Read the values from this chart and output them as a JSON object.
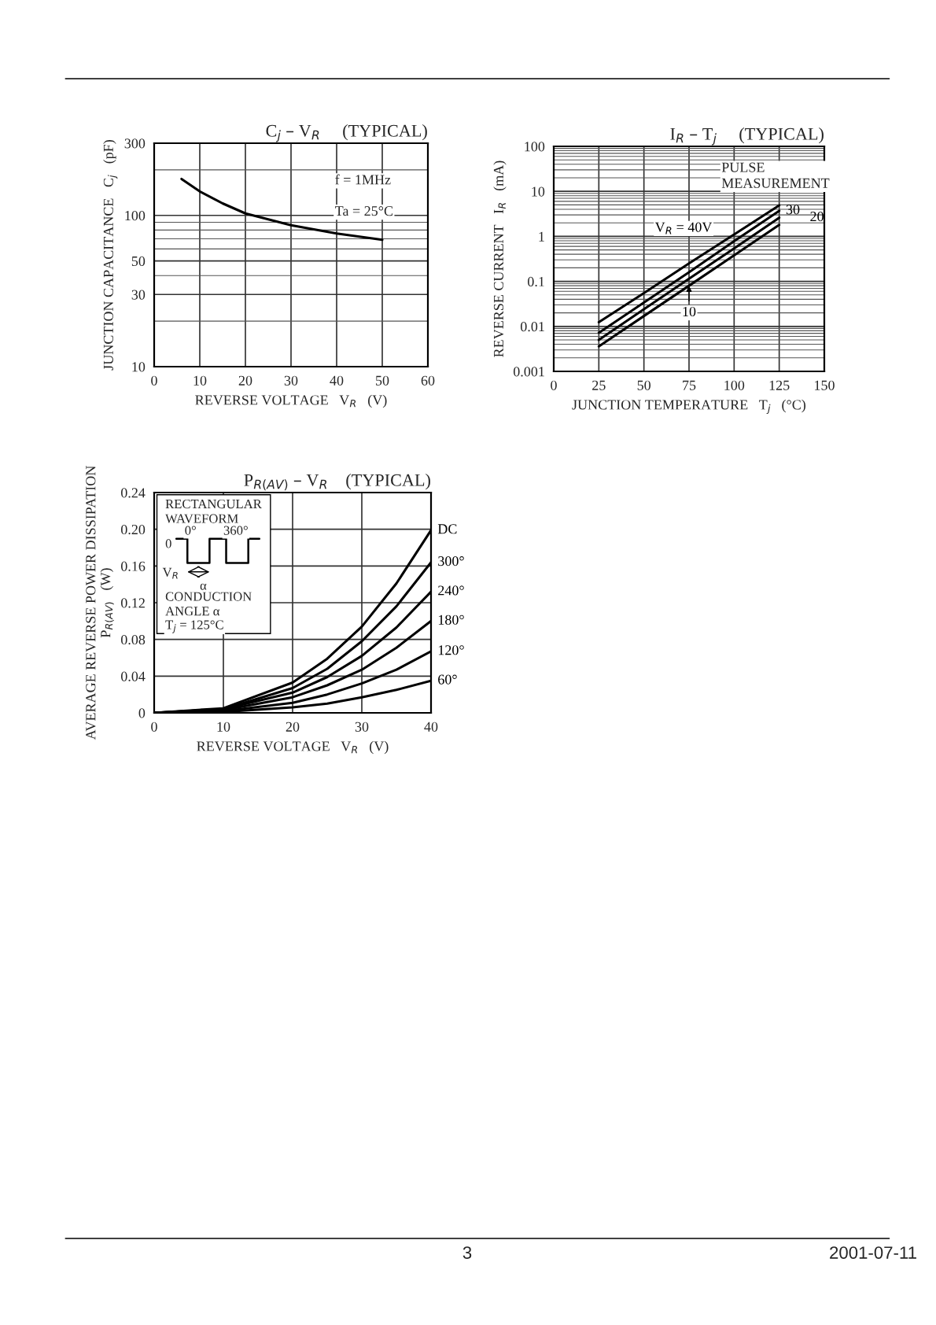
{
  "chart_data": [
    {
      "type": "line",
      "title": "C$_{j}$ – V$_{R}$     (TYPICAL)",
      "xlabel": "REVERSE VOLTAGE   V$_{R}$   (V)",
      "ylabel": "JUNCTION CAPACITANCE   C$_{j}$   (pF)",
      "log": "y",
      "grid": true,
      "xlim": [
        0,
        60
      ],
      "xticks": [
        0,
        10,
        20,
        30,
        40,
        50,
        60
      ],
      "ylim": [
        10,
        300
      ],
      "yticks": [
        10,
        30,
        50,
        100,
        300
      ],
      "annotations": [
        "f = 1MHz",
        "Ta = 25°C"
      ],
      "series": [
        {
          "color": "#000000",
          "x": [
            6,
            10,
            15,
            20,
            30,
            40,
            50
          ],
          "values": [
            174,
            144,
            120,
            103,
            86,
            76,
            69
          ]
        }
      ]
    },
    {
      "type": "line",
      "title": "I$_{R}$ – T$_{j}$     (TYPICAL)",
      "xlabel": "JUNCTION TEMPERATURE   T$_{j}$   (°C)",
      "ylabel": "REVERSE CURRENT   I$_{R}$   (mA)",
      "log": "y",
      "grid": true,
      "xlim": [
        0,
        150
      ],
      "xticks": [
        0,
        25,
        50,
        75,
        100,
        125,
        150
      ],
      "ylim": [
        0.001,
        100
      ],
      "yticks": [
        0.001,
        0.01,
        0.1,
        1,
        10,
        100
      ],
      "annotations": [
        "PULSE\nMEASUREMENT"
      ],
      "series": [
        {
          "name": "V$_{R}$ = 40V",
          "color": "#000000",
          "x": [
            25,
            50,
            75,
            100,
            125
          ],
          "values": [
            0.0124,
            0.055,
            0.25,
            1.1,
            4.9
          ]
        },
        {
          "name": "30",
          "color": "#000000",
          "x": [
            25,
            50,
            75,
            100,
            125
          ],
          "values": [
            0.0072,
            0.034,
            0.16,
            0.78,
            3.7
          ]
        },
        {
          "name": "20",
          "color": "#000000",
          "x": [
            25,
            50,
            75,
            100,
            125
          ],
          "values": [
            0.005,
            0.024,
            0.114,
            0.54,
            2.6
          ]
        },
        {
          "name": "10",
          "color": "#000000",
          "x": [
            25,
            50,
            75,
            100,
            125
          ],
          "values": [
            0.0036,
            0.017,
            0.08,
            0.38,
            1.8
          ]
        }
      ]
    },
    {
      "type": "line",
      "title": "P$_{R(AV)}$ – V$_{R}$    (TYPICAL)",
      "xlabel": "REVERSE VOLTAGE   V$_{R}$   (V)",
      "ylabel": "AVERAGE REVERSE POWER DISSIPATION\nP$_{R(AV)}$   (W)",
      "grid": true,
      "xlim": [
        0,
        40
      ],
      "xticks": [
        0,
        10,
        20,
        30,
        40
      ],
      "ylim": [
        0,
        0.24
      ],
      "yticks": [
        0,
        0.04,
        0.08,
        0.12,
        0.16,
        {
          "value": 0.2,
          "label": "0.20"
        },
        0.24
      ],
      "annotations": [
        "RECTANGULAR\nWAVEFORM",
        "0",
        "0°",
        "360°",
        "V$_{R}$",
        "α",
        "CONDUCTION\nANGLE α",
        "T$_{j}$ = 125°C",
        "3",
        "2001-07-11"
      ],
      "series": [
        {
          "name": "DC",
          "color": "#000000",
          "x": [
            0,
            10,
            20,
            25,
            30,
            35,
            40
          ],
          "values": [
            0,
            0.005,
            0.033,
            0.059,
            0.094,
            0.141,
            0.199
          ]
        },
        {
          "name": "300°",
          "color": "#000000",
          "x": [
            0,
            10,
            20,
            25,
            30,
            35,
            40
          ],
          "values": [
            0,
            0.004,
            0.027,
            0.048,
            0.078,
            0.116,
            0.164
          ]
        },
        {
          "name": "240°",
          "color": "#000000",
          "x": [
            0,
            10,
            20,
            25,
            30,
            35,
            40
          ],
          "values": [
            0,
            0.004,
            0.022,
            0.039,
            0.062,
            0.093,
            0.132
          ]
        },
        {
          "name": "180°",
          "color": "#000000",
          "x": [
            0,
            10,
            20,
            25,
            30,
            35,
            40
          ],
          "values": [
            0,
            0.003,
            0.017,
            0.03,
            0.047,
            0.071,
            0.1
          ]
        },
        {
          "name": "120°",
          "color": "#000000",
          "x": [
            0,
            10,
            20,
            25,
            30,
            35,
            40
          ],
          "values": [
            0,
            0.002,
            0.011,
            0.02,
            0.032,
            0.047,
            0.067
          ]
        },
        {
          "name": "60°",
          "color": "#000000",
          "x": [
            0,
            10,
            20,
            25,
            30,
            35,
            40
          ],
          "values": [
            0,
            0.001,
            0.006,
            0.01,
            0.017,
            0.025,
            0.035
          ]
        }
      ]
    }
  ]
}
